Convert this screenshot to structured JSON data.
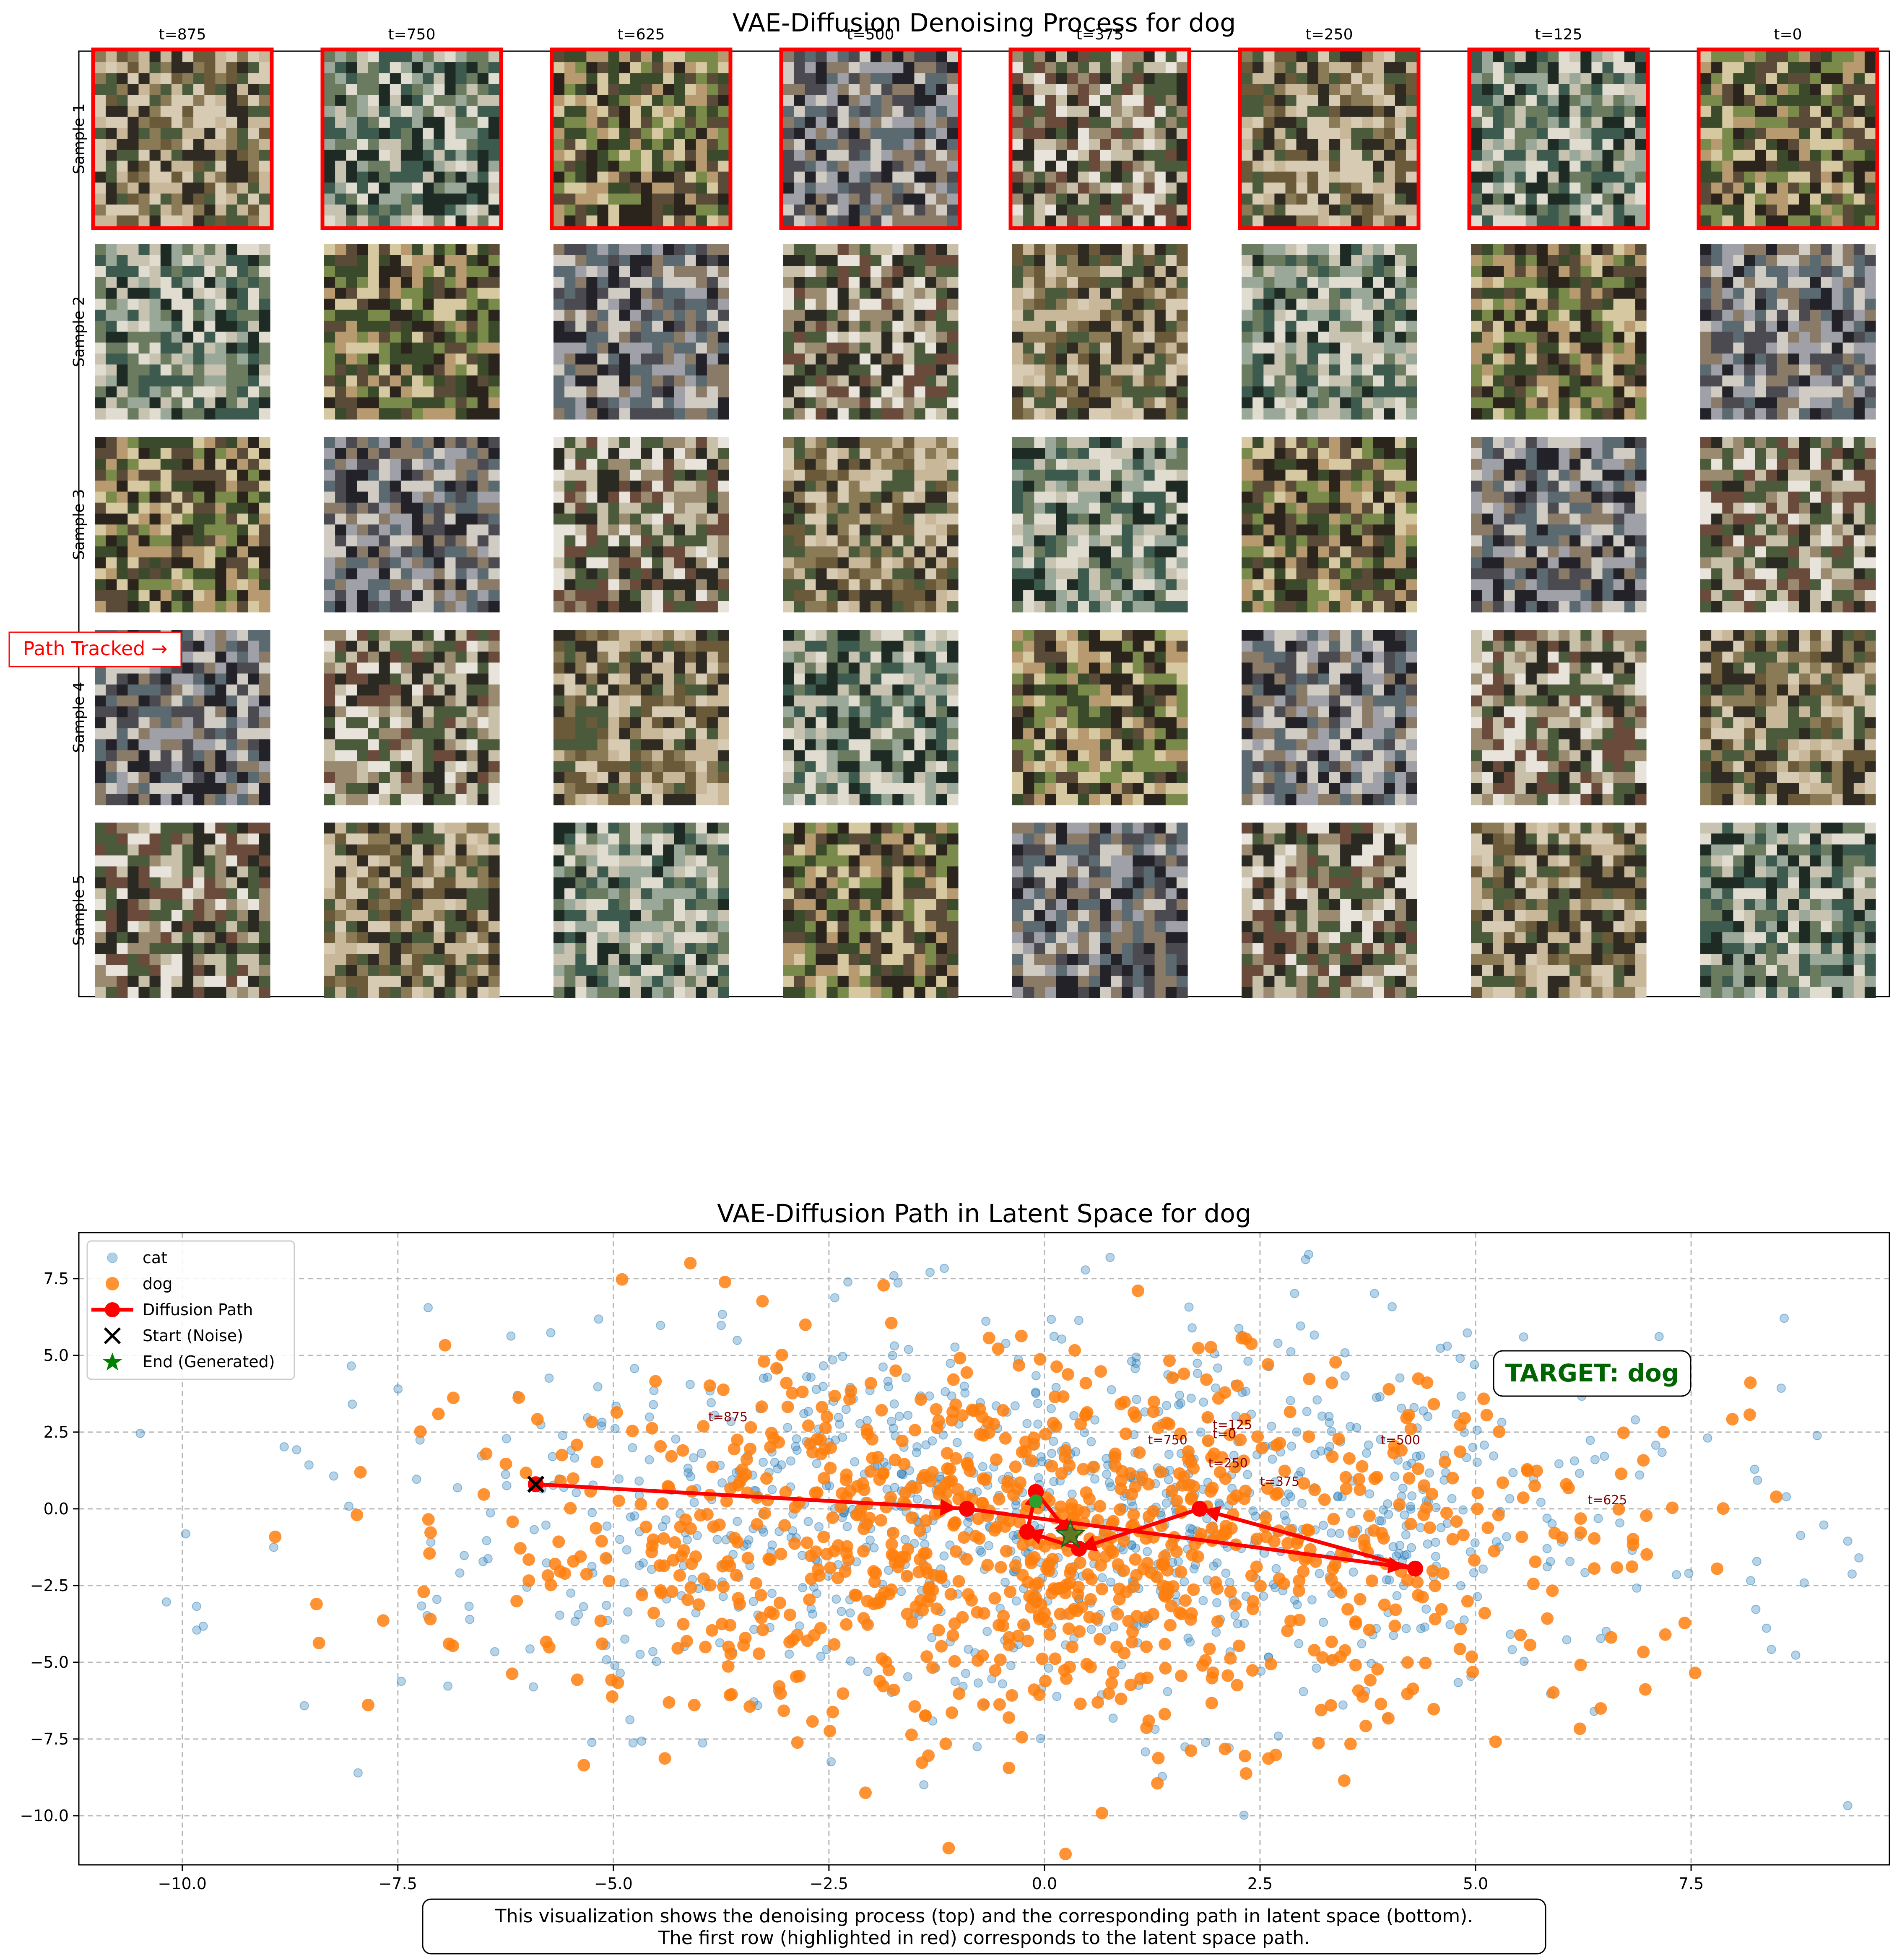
{
  "top_panel": {
    "title": "VAE-Diffusion Denoising Process for dog",
    "column_labels": [
      "t=875",
      "t=750",
      "t=625",
      "t=500",
      "t=375",
      "t=250",
      "t=125",
      "t=0"
    ],
    "row_labels": [
      "Sample 1",
      "Sample 2",
      "Sample 3",
      "Sample 4",
      "Sample 5"
    ],
    "highlighted_row": 0,
    "highlight_color": "#ff0000",
    "path_tracked_label": "Path Tracked →"
  },
  "chart_data": {
    "type": "scatter",
    "title": "VAE-Diffusion Path in Latent Space for dog",
    "xlim": [
      -11.2,
      9.8
    ],
    "ylim": [
      -11.6,
      9.0
    ],
    "x_ticks": [
      -10.0,
      -7.5,
      -5.0,
      -2.5,
      0.0,
      2.5,
      5.0,
      7.5
    ],
    "y_ticks": [
      7.5,
      5.0,
      2.5,
      0.0,
      -2.5,
      -5.0,
      -7.5,
      -10.0
    ],
    "x_tick_labels": [
      "−10.0",
      "−7.5",
      "−5.0",
      "−2.5",
      "0.0",
      "2.5",
      "5.0",
      "7.5"
    ],
    "y_tick_labels": [
      "7.5",
      "5.0",
      "2.5",
      "0.0",
      "−2.5",
      "−5.0",
      "−7.5",
      "−10.0"
    ],
    "grid": true,
    "legend_position": "top-left",
    "legend": [
      "cat",
      "dog",
      "Diffusion Path",
      "Start (Noise)",
      "End (Generated)"
    ],
    "colors": {
      "cat": "#1f77b4",
      "dog": "#ff7f0e",
      "path": "#ff0000",
      "start": "#000000",
      "end": "#008000",
      "target": "#006400"
    },
    "scatter_series": [
      {
        "name": "cat",
        "count": 1000,
        "x_mean": 0.1,
        "x_sd": 3.6,
        "y_mean": -0.3,
        "y_sd": 3.1
      },
      {
        "name": "dog",
        "count": 1000,
        "x_mean": 0.0,
        "x_sd": 3.3,
        "y_mean": -1.1,
        "y_sd": 3.0
      }
    ],
    "path": [
      {
        "t": "t=875",
        "x": -5.9,
        "y": 0.8
      },
      {
        "t": "t=750",
        "x": -0.9,
        "y": 0.0
      },
      {
        "t": "t=625",
        "x": 4.3,
        "y": -1.95
      },
      {
        "t": "t=500",
        "x": 1.8,
        "y": 0.0
      },
      {
        "t": "t=375",
        "x": 0.4,
        "y": -1.3
      },
      {
        "t": "t=250",
        "x": -0.2,
        "y": -0.75
      },
      {
        "t": "t=125",
        "x": -0.1,
        "y": 0.55
      },
      {
        "t": "t=0",
        "x": 0.3,
        "y": -0.85
      }
    ],
    "path_labels": [
      {
        "text": "t=875",
        "x": -3.9,
        "y": 2.85
      },
      {
        "text": "t=750",
        "x": 1.2,
        "y": 2.1
      },
      {
        "text": "t=625",
        "x": 6.3,
        "y": 0.15
      },
      {
        "text": "t=500",
        "x": 3.9,
        "y": 2.1
      },
      {
        "text": "t=375",
        "x": 2.5,
        "y": 0.75
      },
      {
        "text": "t=250",
        "x": 1.9,
        "y": 1.35
      },
      {
        "text": "t=125",
        "x": 1.95,
        "y": 2.6
      },
      {
        "text": "t=0",
        "x": 1.95,
        "y": 2.3
      }
    ],
    "start_point": {
      "x": -5.9,
      "y": 0.8
    },
    "end_point": {
      "x": 0.3,
      "y": -0.85
    },
    "extra_marker": {
      "x": -0.1,
      "y": 0.25
    },
    "target_label": "TARGET: dog",
    "caption_lines": [
      "This visualization shows the denoising process (top) and the corresponding path in latent space (bottom).",
      "The first row (highlighted in red) corresponds to the latent space path."
    ]
  }
}
